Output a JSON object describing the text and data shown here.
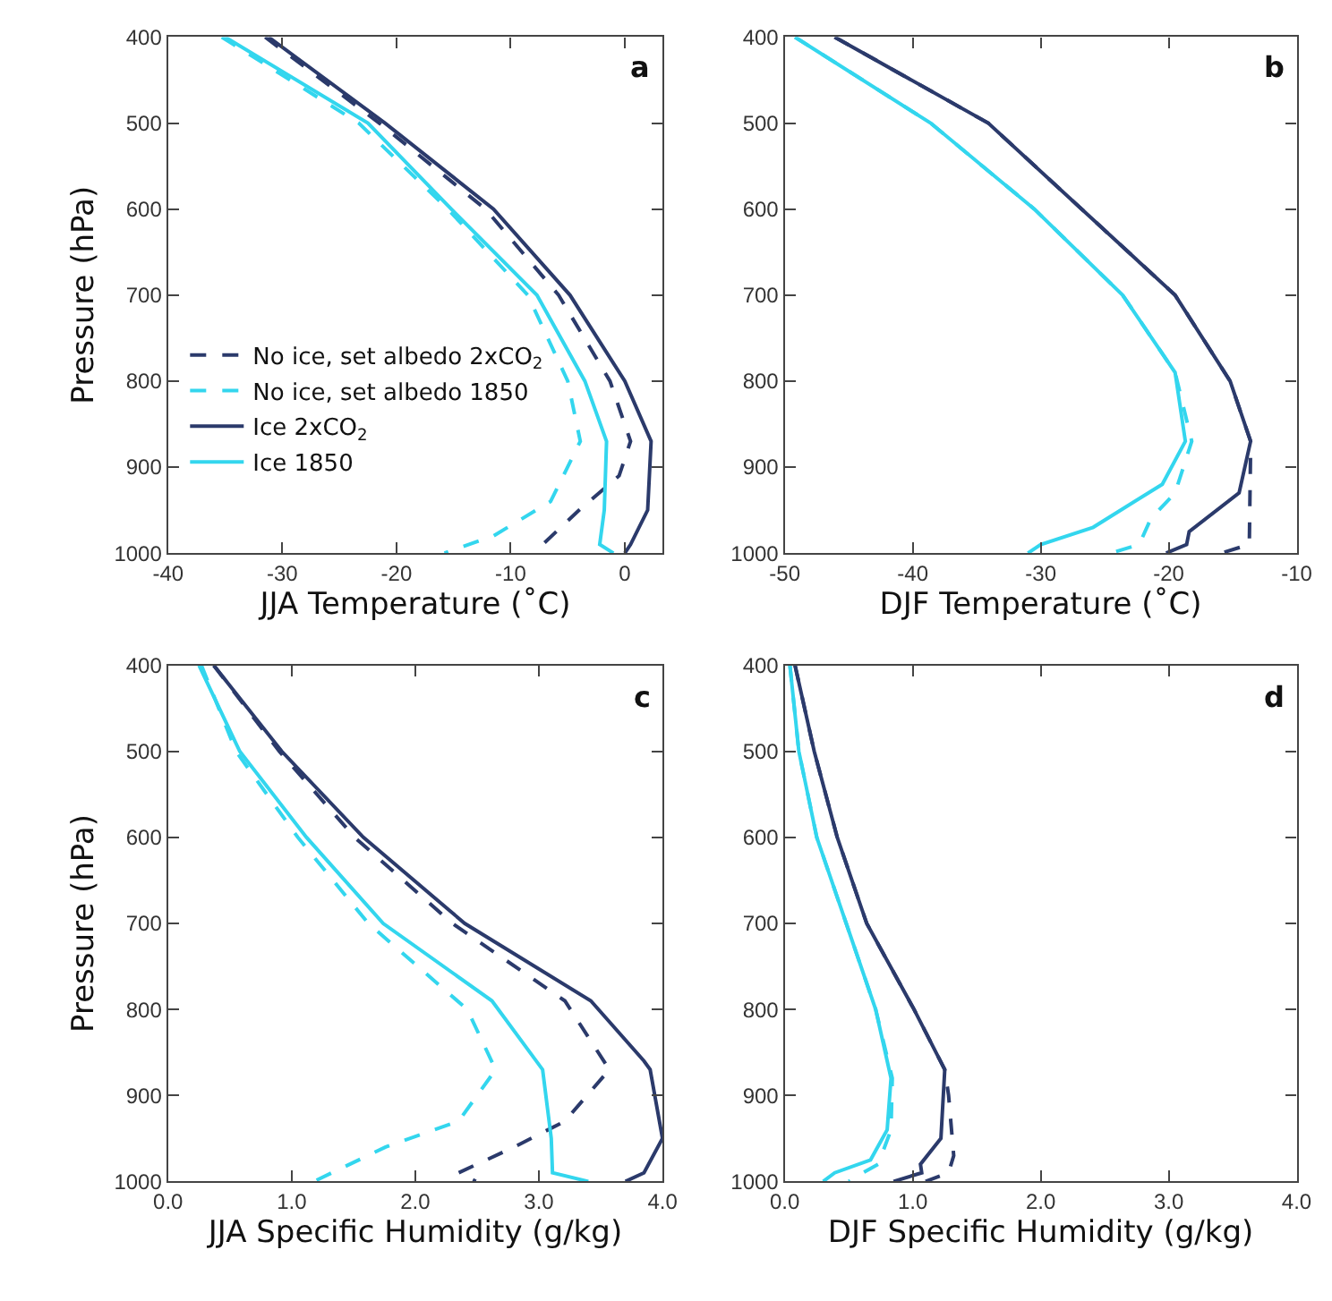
{
  "chart_data": [
    {
      "type": "line",
      "xlabel": "JJA Temperature (˚C)",
      "ylabel": "Pressure (hPa)",
      "annotations": [
        "a"
      ],
      "legend": "bottom left",
      "xlim": [
        -40,
        3.3
      ],
      "xticks": [
        -40,
        -30,
        -20,
        -10,
        0
      ],
      "ylim": [
        1000,
        400
      ],
      "yticks": [
        400,
        500,
        600,
        700,
        800,
        900,
        1000
      ],
      "series": [
        {
          "name": "No ice, set albedo 2xCO$_{2}$",
          "color": "#2b3a6b",
          "line_style": "dashed",
          "x": [
            -31.5,
            -21.5,
            -12.2,
            -5.8,
            -1.3,
            0.5,
            -0.5,
            -4.0,
            -7.2,
            -6.5
          ],
          "values": [
            400,
            500,
            600,
            700,
            800,
            870,
            910,
            950,
            990,
            1000
          ]
        },
        {
          "name": "No ice, set albedo 1850",
          "color": "#33d6ee",
          "line_style": "dashed",
          "x": [
            -35.3,
            -23.3,
            -15.5,
            -8.5,
            -5.0,
            -3.9,
            -6.5,
            -11.5,
            -15.8
          ],
          "values": [
            400,
            500,
            600,
            700,
            800,
            870,
            940,
            980,
            1000
          ]
        },
        {
          "name": "Ice 2xCO$_{2}$",
          "color": "#2b3a6b",
          "line_style": "solid",
          "x": [
            -31.2,
            -21.0,
            -11.5,
            -4.8,
            0.0,
            2.3,
            2.0,
            0.5,
            0.0
          ],
          "values": [
            400,
            500,
            600,
            700,
            800,
            870,
            950,
            990,
            1000
          ]
        },
        {
          "name": "Ice 1850",
          "color": "#33d6ee",
          "line_style": "solid",
          "x": [
            -35.0,
            -22.5,
            -15.2,
            -7.7,
            -3.5,
            -1.6,
            -1.8,
            -2.2,
            -1.0
          ],
          "values": [
            400,
            500,
            600,
            700,
            800,
            870,
            950,
            990,
            1000
          ]
        }
      ]
    },
    {
      "type": "line",
      "xlabel": "DJF Temperature (˚C)",
      "annotations": [
        "b"
      ],
      "xlim": [
        -50,
        -10
      ],
      "xticks": [
        -50,
        -40,
        -30,
        -20,
        -10
      ],
      "ylim": [
        1000,
        400
      ],
      "yticks": [
        400,
        500,
        600,
        700,
        800,
        900,
        1000
      ],
      "series": [
        {
          "color": "#2b3a6b",
          "line_style": "dashed",
          "x": [
            -46.1,
            -34.1,
            -26.8,
            -19.5,
            -15.2,
            -13.6,
            -13.6,
            -13.7,
            -15.9
          ],
          "values": [
            400,
            500,
            600,
            700,
            800,
            870,
            880,
            990,
            1000
          ]
        },
        {
          "color": "#33d6ee",
          "line_style": "dashed",
          "x": [
            -49.2,
            -38.6,
            -30.5,
            -23.6,
            -19.5,
            -18.2,
            -19.5,
            -21.4,
            -22.3,
            -24.5
          ],
          "values": [
            400,
            500,
            600,
            700,
            790,
            870,
            930,
            960,
            990,
            1000
          ]
        },
        {
          "color": "#2b3a6b",
          "line_style": "solid",
          "x": [
            -46.1,
            -34.1,
            -26.8,
            -19.5,
            -15.2,
            -13.6,
            -14.5,
            -18.4,
            -18.6,
            -20.2
          ],
          "values": [
            400,
            500,
            600,
            700,
            800,
            870,
            930,
            975,
            990,
            1000
          ]
        },
        {
          "color": "#33d6ee",
          "line_style": "solid",
          "x": [
            -49.2,
            -38.6,
            -30.5,
            -23.6,
            -19.5,
            -18.7,
            -20.5,
            -25.9,
            -30.0,
            -31.0
          ],
          "values": [
            400,
            500,
            600,
            700,
            790,
            870,
            920,
            970,
            990,
            1000
          ]
        }
      ]
    },
    {
      "type": "line",
      "xlabel": "JJA Specific Humidity (g/kg)",
      "ylabel": "Pressure (hPa)",
      "annotations": [
        "c"
      ],
      "xlim": [
        0,
        4
      ],
      "xticks": [
        {
          "value": 0,
          "label": "0.0"
        },
        {
          "value": 1,
          "label": "1.0"
        },
        {
          "value": 2,
          "label": "2.0"
        },
        {
          "value": 3,
          "label": "3.0"
        },
        {
          "value": 4,
          "label": "4.0"
        }
      ],
      "ylim": [
        1000,
        400
      ],
      "yticks": [
        400,
        500,
        600,
        700,
        800,
        900,
        1000
      ],
      "series": [
        {
          "color": "#2b3a6b",
          "line_style": "dashed",
          "x": [
            0.37,
            0.9,
            1.51,
            2.3,
            3.21,
            3.57,
            3.21,
            2.8,
            2.35,
            2.49
          ],
          "values": [
            400,
            500,
            600,
            700,
            790,
            870,
            930,
            960,
            990,
            1000
          ]
        },
        {
          "color": "#33d6ee",
          "line_style": "dashed",
          "x": [
            0.27,
            0.55,
            1.05,
            1.62,
            2.42,
            2.65,
            2.35,
            1.76,
            1.18
          ],
          "values": [
            400,
            500,
            600,
            700,
            800,
            870,
            930,
            960,
            1000
          ]
        },
        {
          "color": "#2b3a6b",
          "line_style": "solid",
          "x": [
            0.37,
            0.92,
            1.58,
            2.4,
            3.42,
            3.85,
            3.9,
            4.0,
            3.85,
            3.7
          ],
          "values": [
            400,
            500,
            600,
            700,
            790,
            860,
            870,
            950,
            990,
            1000
          ]
        },
        {
          "color": "#33d6ee",
          "line_style": "solid",
          "x": [
            0.25,
            0.58,
            1.12,
            1.74,
            2.62,
            3.03,
            3.1,
            3.11,
            3.4
          ],
          "values": [
            400,
            500,
            600,
            700,
            790,
            870,
            950,
            990,
            1000
          ]
        }
      ]
    },
    {
      "type": "line",
      "xlabel": "DJF Specific Humidity (g/kg)",
      "annotations": [
        "d"
      ],
      "xlim": [
        0,
        4
      ],
      "xticks": [
        {
          "value": 0,
          "label": "0.0"
        },
        {
          "value": 1,
          "label": "1.0"
        },
        {
          "value": 2,
          "label": "2.0"
        },
        {
          "value": 3,
          "label": "3.0"
        },
        {
          "value": 4,
          "label": "4.0"
        }
      ],
      "ylim": [
        1000,
        400
      ],
      "yticks": [
        400,
        500,
        600,
        700,
        800,
        900,
        1000
      ],
      "series": [
        {
          "color": "#2b3a6b",
          "line_style": "dashed",
          "x": [
            0.08,
            0.23,
            0.41,
            0.64,
            1.01,
            1.25,
            1.28,
            1.32,
            1.28,
            1.1
          ],
          "values": [
            400,
            500,
            600,
            700,
            800,
            870,
            900,
            970,
            990,
            1000
          ]
        },
        {
          "color": "#33d6ee",
          "line_style": "dashed",
          "x": [
            0.04,
            0.11,
            0.25,
            0.48,
            0.71,
            0.84,
            0.83,
            0.73,
            0.55,
            0.5
          ],
          "values": [
            400,
            500,
            600,
            700,
            800,
            880,
            940,
            980,
            995,
            1000
          ]
        },
        {
          "color": "#2b3a6b",
          "line_style": "solid",
          "x": [
            0.08,
            0.23,
            0.41,
            0.64,
            1.01,
            1.25,
            1.22,
            1.06,
            1.07,
            0.85
          ],
          "values": [
            400,
            500,
            600,
            700,
            800,
            870,
            950,
            980,
            990,
            1000
          ]
        },
        {
          "color": "#33d6ee",
          "line_style": "solid",
          "x": [
            0.04,
            0.11,
            0.25,
            0.48,
            0.71,
            0.83,
            0.8,
            0.67,
            0.39,
            0.3
          ],
          "values": [
            400,
            500,
            600,
            700,
            800,
            880,
            940,
            975,
            990,
            1000
          ]
        }
      ]
    }
  ]
}
